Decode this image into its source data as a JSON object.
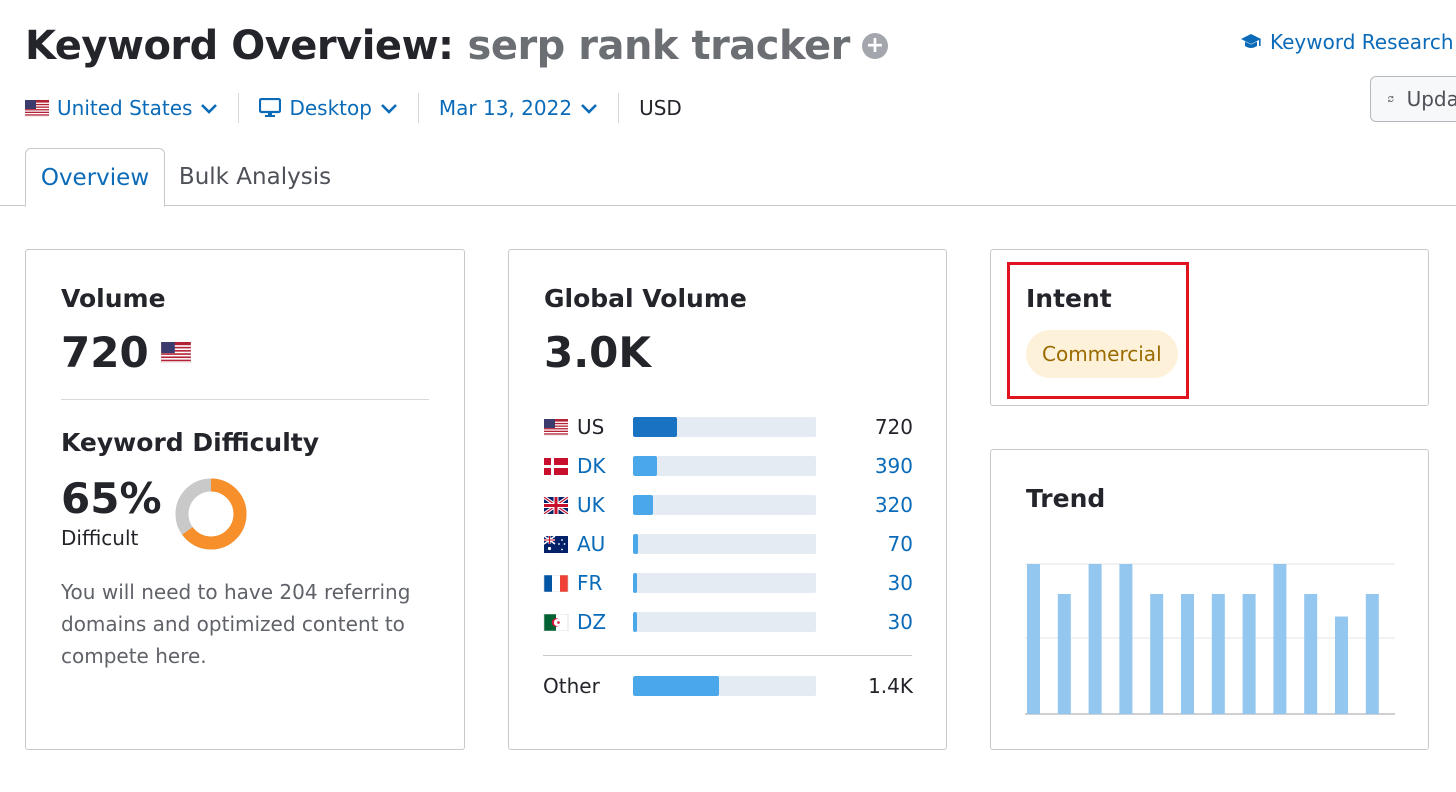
{
  "header": {
    "title": "Keyword Overview:",
    "keyword": "serp rank tracker",
    "keyword_research_link": "Keyword Research",
    "update_button": "Update"
  },
  "filters": {
    "country": "United States",
    "device": "Desktop",
    "date": "Mar 13, 2022",
    "currency": "USD"
  },
  "tabs": [
    {
      "label": "Overview",
      "active": true
    },
    {
      "label": "Bulk Analysis",
      "active": false
    }
  ],
  "volume_card": {
    "label": "Volume",
    "value": "720",
    "kd_label": "Keyword Difficulty",
    "kd_value": "65%",
    "kd_percent": 65,
    "kd_level": "Difficult",
    "kd_description": "You will need to have 204 referring domains and optimized content to compete here."
  },
  "global_card": {
    "label": "Global Volume",
    "value": "3.0K",
    "countries": [
      {
        "code": "US",
        "value": "720",
        "share": 0.24,
        "flag": "us-flag",
        "bar_color": "#1a72c2",
        "label_color": "black"
      },
      {
        "code": "DK",
        "value": "390",
        "share": 0.13,
        "flag": "dk-flag",
        "bar_color": "#4aa8ea",
        "label_color": "blue"
      },
      {
        "code": "UK",
        "value": "320",
        "share": 0.11,
        "flag": "uk-flag",
        "bar_color": "#4aa8ea",
        "label_color": "blue"
      },
      {
        "code": "AU",
        "value": "70",
        "share": 0.025,
        "flag": "au-flag",
        "bar_color": "#4aa8ea",
        "label_color": "blue"
      },
      {
        "code": "FR",
        "value": "30",
        "share": 0.02,
        "flag": "fr-flag",
        "bar_color": "#4aa8ea",
        "label_color": "blue"
      },
      {
        "code": "DZ",
        "value": "30",
        "share": 0.02,
        "flag": "dz-flag",
        "bar_color": "#4aa8ea",
        "label_color": "blue"
      }
    ],
    "other": {
      "label": "Other",
      "value": "1.4K",
      "share": 0.47
    }
  },
  "intent_card": {
    "label": "Intent",
    "intent": "Commercial"
  },
  "trend_card": {
    "label": "Trend",
    "chart_data": {
      "type": "bar",
      "values": [
        1.0,
        0.8,
        1.0,
        1.0,
        0.8,
        0.8,
        0.8,
        0.8,
        1.0,
        0.8,
        0.65,
        0.8
      ],
      "bar_color": "#93c7ef"
    }
  },
  "colors": {
    "link_blue": "#0b6bb8",
    "kd_orange": "#f7902a",
    "kd_track": "#c9c9c9",
    "highlight_red": "#e0141e"
  }
}
